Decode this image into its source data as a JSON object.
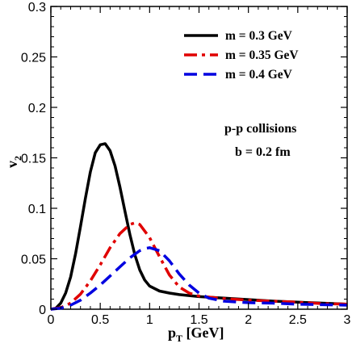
{
  "chart_data": {
    "type": "line",
    "title": "",
    "xlabel_main": "p",
    "xlabel_sub": "T",
    "xlabel_unit": " [GeV]",
    "ylabel_main": "v",
    "ylabel_sub": "2",
    "xlim": [
      0,
      3
    ],
    "ylim": [
      0,
      0.3
    ],
    "x_ticks": [
      0,
      0.5,
      1,
      1.5,
      2,
      2.5,
      3
    ],
    "x_tick_labels": [
      "0",
      "0.5",
      "1",
      "1.5",
      "2",
      "2.5",
      "3"
    ],
    "y_ticks": [
      0,
      0.05,
      0.1,
      0.15,
      0.2,
      0.25,
      0.3
    ],
    "y_tick_labels": [
      "0",
      "0.05",
      "0.1",
      "0.15",
      "0.2",
      "0.25",
      "0.3"
    ],
    "grid": false,
    "legend_position": "top-right",
    "annotations": [
      "p-p collisions",
      "b = 0.2 fm"
    ],
    "series": [
      {
        "name": "m = 0.3 GeV",
        "color": "#000000",
        "style": "solid",
        "x": [
          0.0,
          0.05,
          0.1,
          0.15,
          0.2,
          0.25,
          0.3,
          0.35,
          0.4,
          0.45,
          0.5,
          0.55,
          0.6,
          0.65,
          0.7,
          0.75,
          0.8,
          0.85,
          0.9,
          0.95,
          1.0,
          1.1,
          1.2,
          1.3,
          1.4,
          1.5,
          1.75,
          2.0,
          2.25,
          2.5,
          2.75,
          3.0
        ],
        "y": [
          0.0,
          0.001,
          0.006,
          0.016,
          0.032,
          0.055,
          0.082,
          0.11,
          0.136,
          0.155,
          0.163,
          0.164,
          0.157,
          0.142,
          0.121,
          0.097,
          0.074,
          0.054,
          0.039,
          0.029,
          0.023,
          0.018,
          0.016,
          0.0145,
          0.0135,
          0.0125,
          0.011,
          0.0095,
          0.008,
          0.007,
          0.006,
          0.005
        ]
      },
      {
        "name": "m = 0.35 GeV",
        "color": "#e00000",
        "style": "dashdot",
        "x": [
          0.0,
          0.1,
          0.2,
          0.3,
          0.4,
          0.5,
          0.6,
          0.7,
          0.8,
          0.85,
          0.9,
          1.0,
          1.1,
          1.2,
          1.3,
          1.4,
          1.5,
          1.75,
          2.0,
          2.25,
          2.5,
          2.75,
          3.0
        ],
        "y": [
          0.0,
          0.0015,
          0.006,
          0.015,
          0.028,
          0.044,
          0.061,
          0.075,
          0.084,
          0.0855,
          0.084,
          0.071,
          0.052,
          0.034,
          0.022,
          0.016,
          0.013,
          0.0105,
          0.009,
          0.008,
          0.007,
          0.0055,
          0.005
        ]
      },
      {
        "name": "m = 0.4 GeV",
        "color": "#0000e0",
        "style": "dashed",
        "x": [
          0.0,
          0.1,
          0.2,
          0.3,
          0.4,
          0.5,
          0.6,
          0.7,
          0.8,
          0.9,
          0.95,
          1.0,
          1.1,
          1.2,
          1.3,
          1.4,
          1.5,
          1.6,
          1.75,
          2.0,
          2.25,
          2.5,
          2.75,
          3.0
        ],
        "y": [
          0.0,
          0.001,
          0.004,
          0.009,
          0.016,
          0.024,
          0.033,
          0.042,
          0.051,
          0.058,
          0.06,
          0.061,
          0.058,
          0.048,
          0.035,
          0.024,
          0.016,
          0.011,
          0.008,
          0.0065,
          0.006,
          0.005,
          0.0045,
          0.004
        ]
      }
    ]
  }
}
